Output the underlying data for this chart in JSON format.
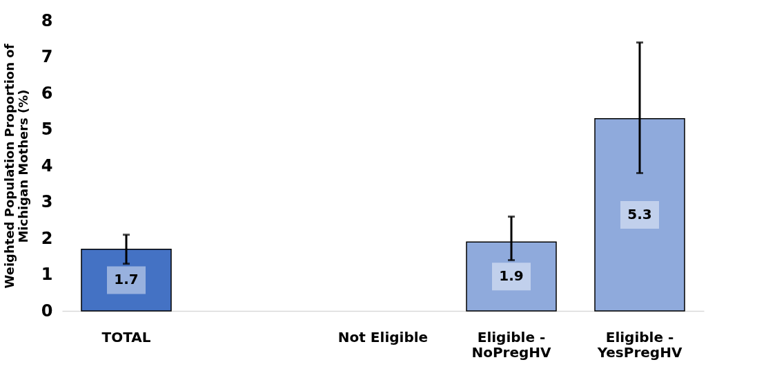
{
  "chart_data": {
    "type": "bar",
    "ylabel": "Weighted Population Proportion of Michigan Mothers (%)",
    "categories": [
      "TOTAL",
      null,
      "Not Eligible",
      "Eligible - NoPregHV",
      "Eligible - YesPregHV"
    ],
    "values": [
      1.7,
      null,
      null,
      1.9,
      5.3
    ],
    "colors": [
      "#4472c4",
      "#8faadc",
      "#8faadc",
      "#8faadc",
      "#8faadc"
    ],
    "errors": [
      [
        1.3,
        2.1
      ],
      null,
      null,
      [
        1.4,
        2.6
      ],
      [
        3.8,
        7.4
      ]
    ],
    "ylim": [
      0,
      8
    ],
    "yticks": [
      0,
      1,
      2,
      3,
      4,
      5,
      6,
      7,
      8
    ],
    "grid": false,
    "data_labels": true
  }
}
